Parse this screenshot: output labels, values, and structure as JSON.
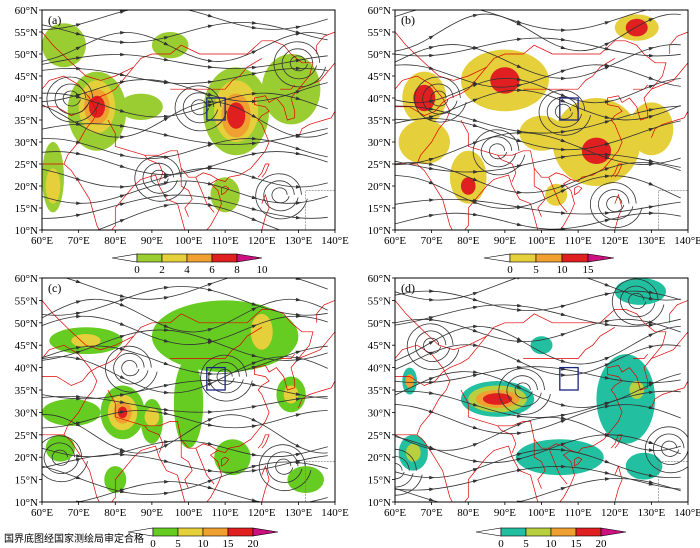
{
  "panels": [
    {
      "id": "a",
      "label": "(a)",
      "colorbar": {
        "ticks": [
          "0",
          "2",
          "4",
          "6",
          "8",
          "10"
        ],
        "colors": [
          "#ffffff",
          "#9acd32",
          "#e5cf3a",
          "#f0a030",
          "#e02020",
          "#cc1080"
        ]
      }
    },
    {
      "id": "b",
      "label": "(b)",
      "colorbar": {
        "ticks": [
          "0",
          "5",
          "10",
          "15"
        ],
        "colors": [
          "#ffffff",
          "#e5cf3a",
          "#f0a030",
          "#e02020",
          "#cc1080"
        ]
      }
    },
    {
      "id": "c",
      "label": "(c)",
      "colorbar": {
        "ticks": [
          "0",
          "5",
          "10",
          "15",
          "20"
        ],
        "colors": [
          "#ffffff",
          "#66cc22",
          "#e5cf3a",
          "#f0a030",
          "#e02020",
          "#cc1080"
        ]
      }
    },
    {
      "id": "d",
      "label": "(d)",
      "colorbar": {
        "ticks": [
          "0",
          "5",
          "10",
          "15",
          "20"
        ],
        "colors": [
          "#ffffff",
          "#22c0a0",
          "#b8d040",
          "#f0a030",
          "#e02020",
          "#cc1080"
        ]
      }
    }
  ],
  "axes": {
    "lon_ticks": [
      "60°E",
      "70°E",
      "80°E",
      "90°E",
      "100°E",
      "110°E",
      "120°E",
      "130°E",
      "140°E"
    ],
    "lat_ticks": [
      "60°N",
      "55°N",
      "50°N",
      "45°N",
      "40°N",
      "35°N",
      "30°N",
      "25°N",
      "20°N",
      "15°N",
      "10°N"
    ]
  },
  "colors": {
    "streamline": "#333333",
    "coastline": "#e00000",
    "box": "#1a237e"
  },
  "approval_text": "国界底图经国家测绘局审定合格"
}
